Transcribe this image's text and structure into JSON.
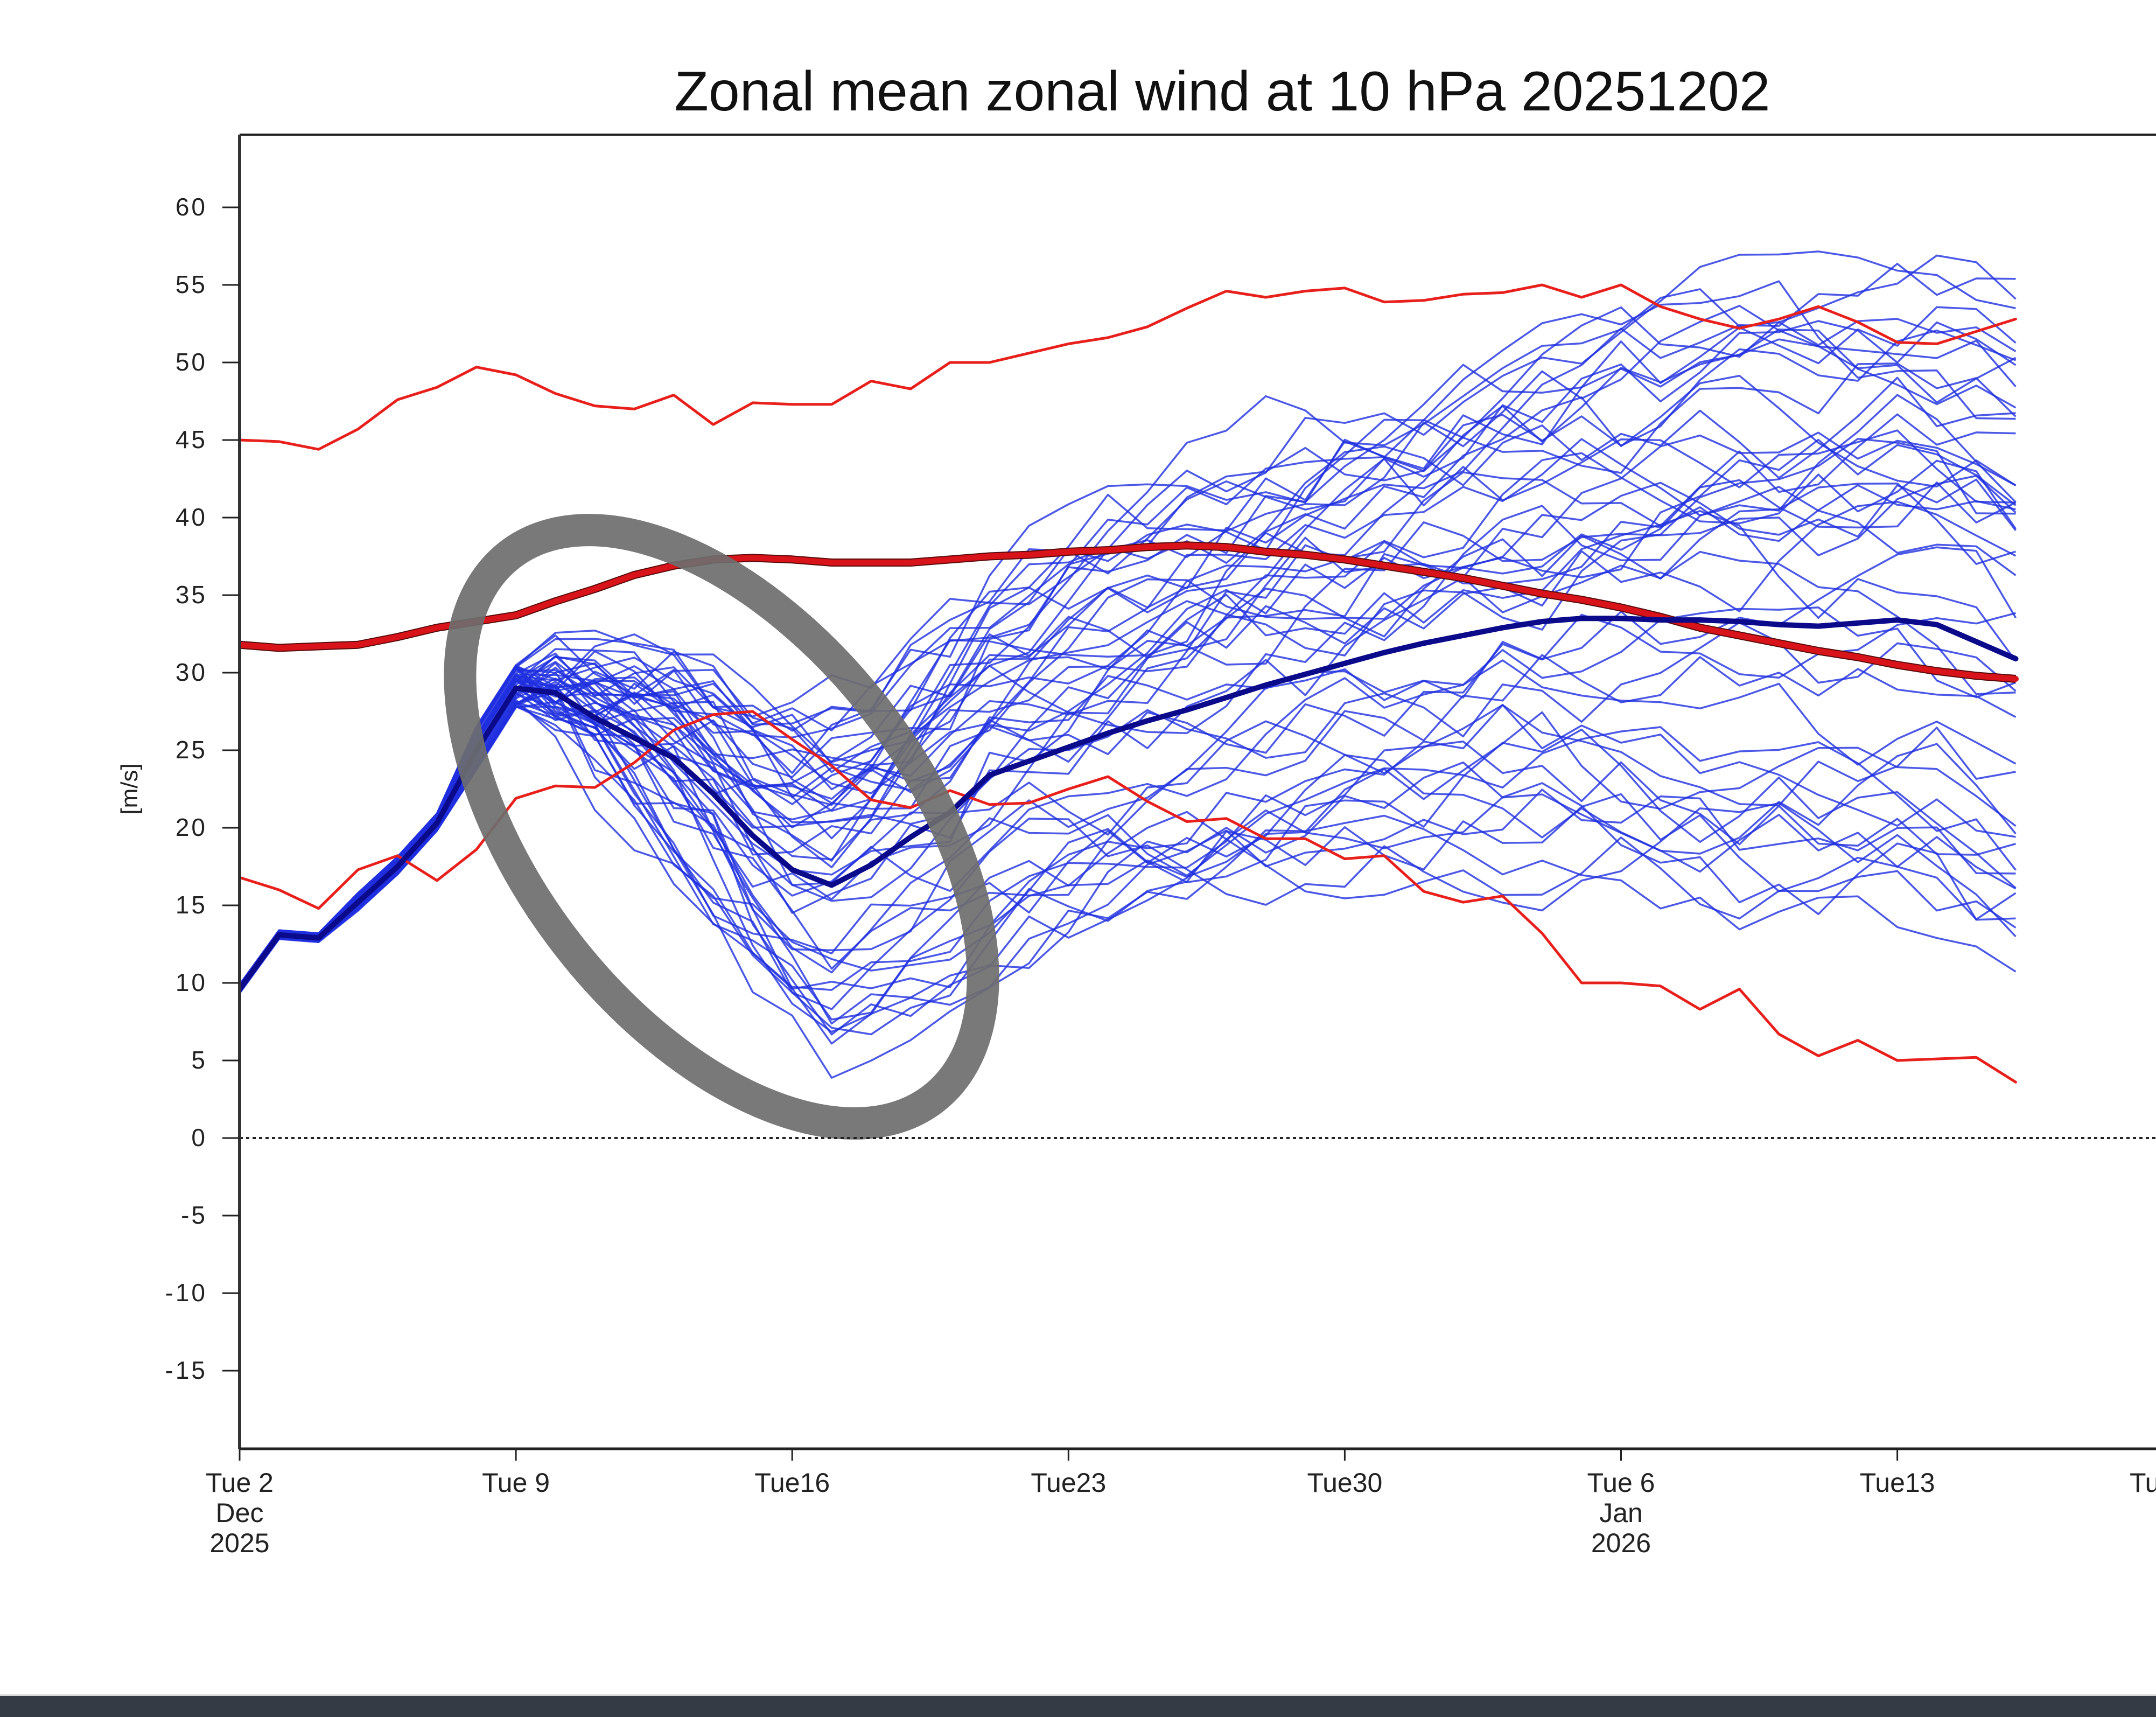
{
  "chart_data": {
    "type": "line",
    "title": "Zonal mean zonal wind at 10 hPa 20251202",
    "xlabel": "",
    "ylabel": "[m/s]",
    "ylim": [
      -20,
      64.7
    ],
    "x_unit": "days since Tue 2 Dec 2025",
    "xlim": [
      0,
      49.2
    ],
    "grid": false,
    "y_ticks": [
      60,
      55,
      50,
      45,
      40,
      35,
      30,
      25,
      20,
      15,
      10,
      5,
      0,
      -5,
      -10,
      -15
    ],
    "x_ticks": [
      {
        "day": 0,
        "lines": [
          "Tue 2",
          "Dec",
          "2025"
        ]
      },
      {
        "day": 7,
        "lines": [
          "Tue 9"
        ]
      },
      {
        "day": 14,
        "lines": [
          "Tue16"
        ]
      },
      {
        "day": 21,
        "lines": [
          "Tue23"
        ]
      },
      {
        "day": 28,
        "lines": [
          "Tue30"
        ]
      },
      {
        "day": 35,
        "lines": [
          "Tue 6",
          "Jan",
          "2026"
        ]
      },
      {
        "day": 42,
        "lines": [
          "Tue13"
        ]
      },
      {
        "day": 49,
        "lines": [
          "Tu"
        ]
      }
    ],
    "zero_line": 0,
    "series": [
      {
        "name": "climatology-max",
        "color": "#e8201c",
        "width": 5,
        "x": [
          0,
          1,
          2,
          3,
          4,
          5,
          6,
          7,
          8,
          9,
          10,
          11,
          12,
          13,
          14,
          15,
          16,
          17,
          18,
          19,
          20,
          21,
          22,
          23,
          24,
          25,
          26,
          27,
          28,
          29,
          30,
          31,
          32,
          33,
          34,
          35,
          36,
          37,
          38,
          39,
          40,
          41,
          42,
          43,
          44,
          45
        ],
        "y": [
          45,
          44.9,
          44.4,
          45.7,
          47.6,
          48.4,
          49.7,
          49.2,
          48,
          47.2,
          47,
          47.9,
          46,
          47.4,
          47.3,
          47.3,
          48.8,
          48.3,
          50,
          50,
          50.6,
          51.2,
          51.6,
          52.3,
          53.5,
          54.6,
          54.2,
          54.6,
          54.8,
          53.9,
          54,
          54.4,
          54.5,
          55,
          54.2,
          55,
          53.6,
          52.8,
          52.2,
          52.8,
          53.6,
          52.6,
          51.3,
          51.2,
          52,
          52.8
        ]
      },
      {
        "name": "climatology-mean",
        "color": "#d8131a",
        "width": 11,
        "x": [
          0,
          1,
          2,
          3,
          4,
          5,
          6,
          7,
          8,
          9,
          10,
          11,
          12,
          13,
          14,
          15,
          16,
          17,
          18,
          19,
          20,
          21,
          22,
          23,
          24,
          25,
          26,
          27,
          28,
          29,
          30,
          31,
          32,
          33,
          34,
          35,
          36,
          37,
          38,
          39,
          40,
          41,
          42,
          43,
          44,
          45
        ],
        "y": [
          31.8,
          31.6,
          31.7,
          31.8,
          32.3,
          32.9,
          33.3,
          33.7,
          34.6,
          35.4,
          36.3,
          36.9,
          37.3,
          37.4,
          37.3,
          37.1,
          37.1,
          37.1,
          37.3,
          37.5,
          37.6,
          37.8,
          37.9,
          38.1,
          38.2,
          38.1,
          37.8,
          37.6,
          37.3,
          36.9,
          36.5,
          36.1,
          35.6,
          35.1,
          34.7,
          34.2,
          33.6,
          32.9,
          32.4,
          31.9,
          31.4,
          31,
          30.5,
          30.1,
          29.8,
          29.6
        ]
      },
      {
        "name": "climatology-min",
        "color": "#e8201c",
        "width": 5,
        "x": [
          0,
          1,
          2,
          3,
          4,
          5,
          6,
          7,
          8,
          9,
          10,
          11,
          12,
          13,
          14,
          15,
          16,
          17,
          18,
          19,
          20,
          21,
          22,
          23,
          24,
          25,
          26,
          27,
          28,
          29,
          30,
          31,
          32,
          33,
          34,
          35,
          36,
          37,
          38,
          39,
          40,
          41,
          42,
          43,
          44,
          45
        ],
        "y": [
          16.8,
          16,
          14.8,
          17.3,
          18.2,
          16.6,
          18.6,
          21.9,
          22.7,
          22.6,
          24.2,
          26.3,
          27.3,
          27.5,
          25.7,
          24,
          21.8,
          21.3,
          22.4,
          21.5,
          21.6,
          22.5,
          23.3,
          21.7,
          20.4,
          20.6,
          19.3,
          19.3,
          18,
          18.2,
          15.9,
          15.2,
          15.6,
          13.2,
          10,
          10,
          9.8,
          8.3,
          9.6,
          6.7,
          5.3,
          6.3,
          5,
          5.1,
          5.2,
          3.6
        ]
      },
      {
        "name": "ensemble-mean",
        "color": "#0a0a8a",
        "width": 10,
        "x": [
          0,
          1,
          2,
          3,
          4,
          5,
          6,
          7,
          8,
          9,
          10,
          11,
          12,
          13,
          14,
          15,
          16,
          17,
          18,
          19,
          20,
          21,
          22,
          23,
          24,
          25,
          26,
          27,
          28,
          29,
          30,
          31,
          32,
          33,
          34,
          35,
          36,
          37,
          38,
          39,
          40,
          41,
          42,
          43,
          44,
          45
        ],
        "y": [
          9.6,
          13.1,
          12.9,
          15.2,
          17.5,
          20.3,
          25,
          29,
          28.7,
          27.1,
          25.8,
          24.5,
          22.2,
          19.5,
          17.3,
          16.3,
          17.6,
          19.4,
          21,
          23.4,
          24.3,
          25.2,
          26.1,
          26.9,
          27.6,
          28.4,
          29.2,
          29.9,
          30.6,
          31.3,
          31.9,
          32.4,
          32.9,
          33.3,
          33.5,
          33.5,
          33.4,
          33.4,
          33.3,
          33.1,
          33,
          33.2,
          33.4,
          33.1,
          32,
          30.9
        ]
      }
    ],
    "ensemble": {
      "color": "#1f2fe0",
      "members": 50,
      "spread_note": "individual member traces"
    },
    "annotation": {
      "type": "ellipse-marker",
      "color": "#6e6e6e"
    }
  }
}
